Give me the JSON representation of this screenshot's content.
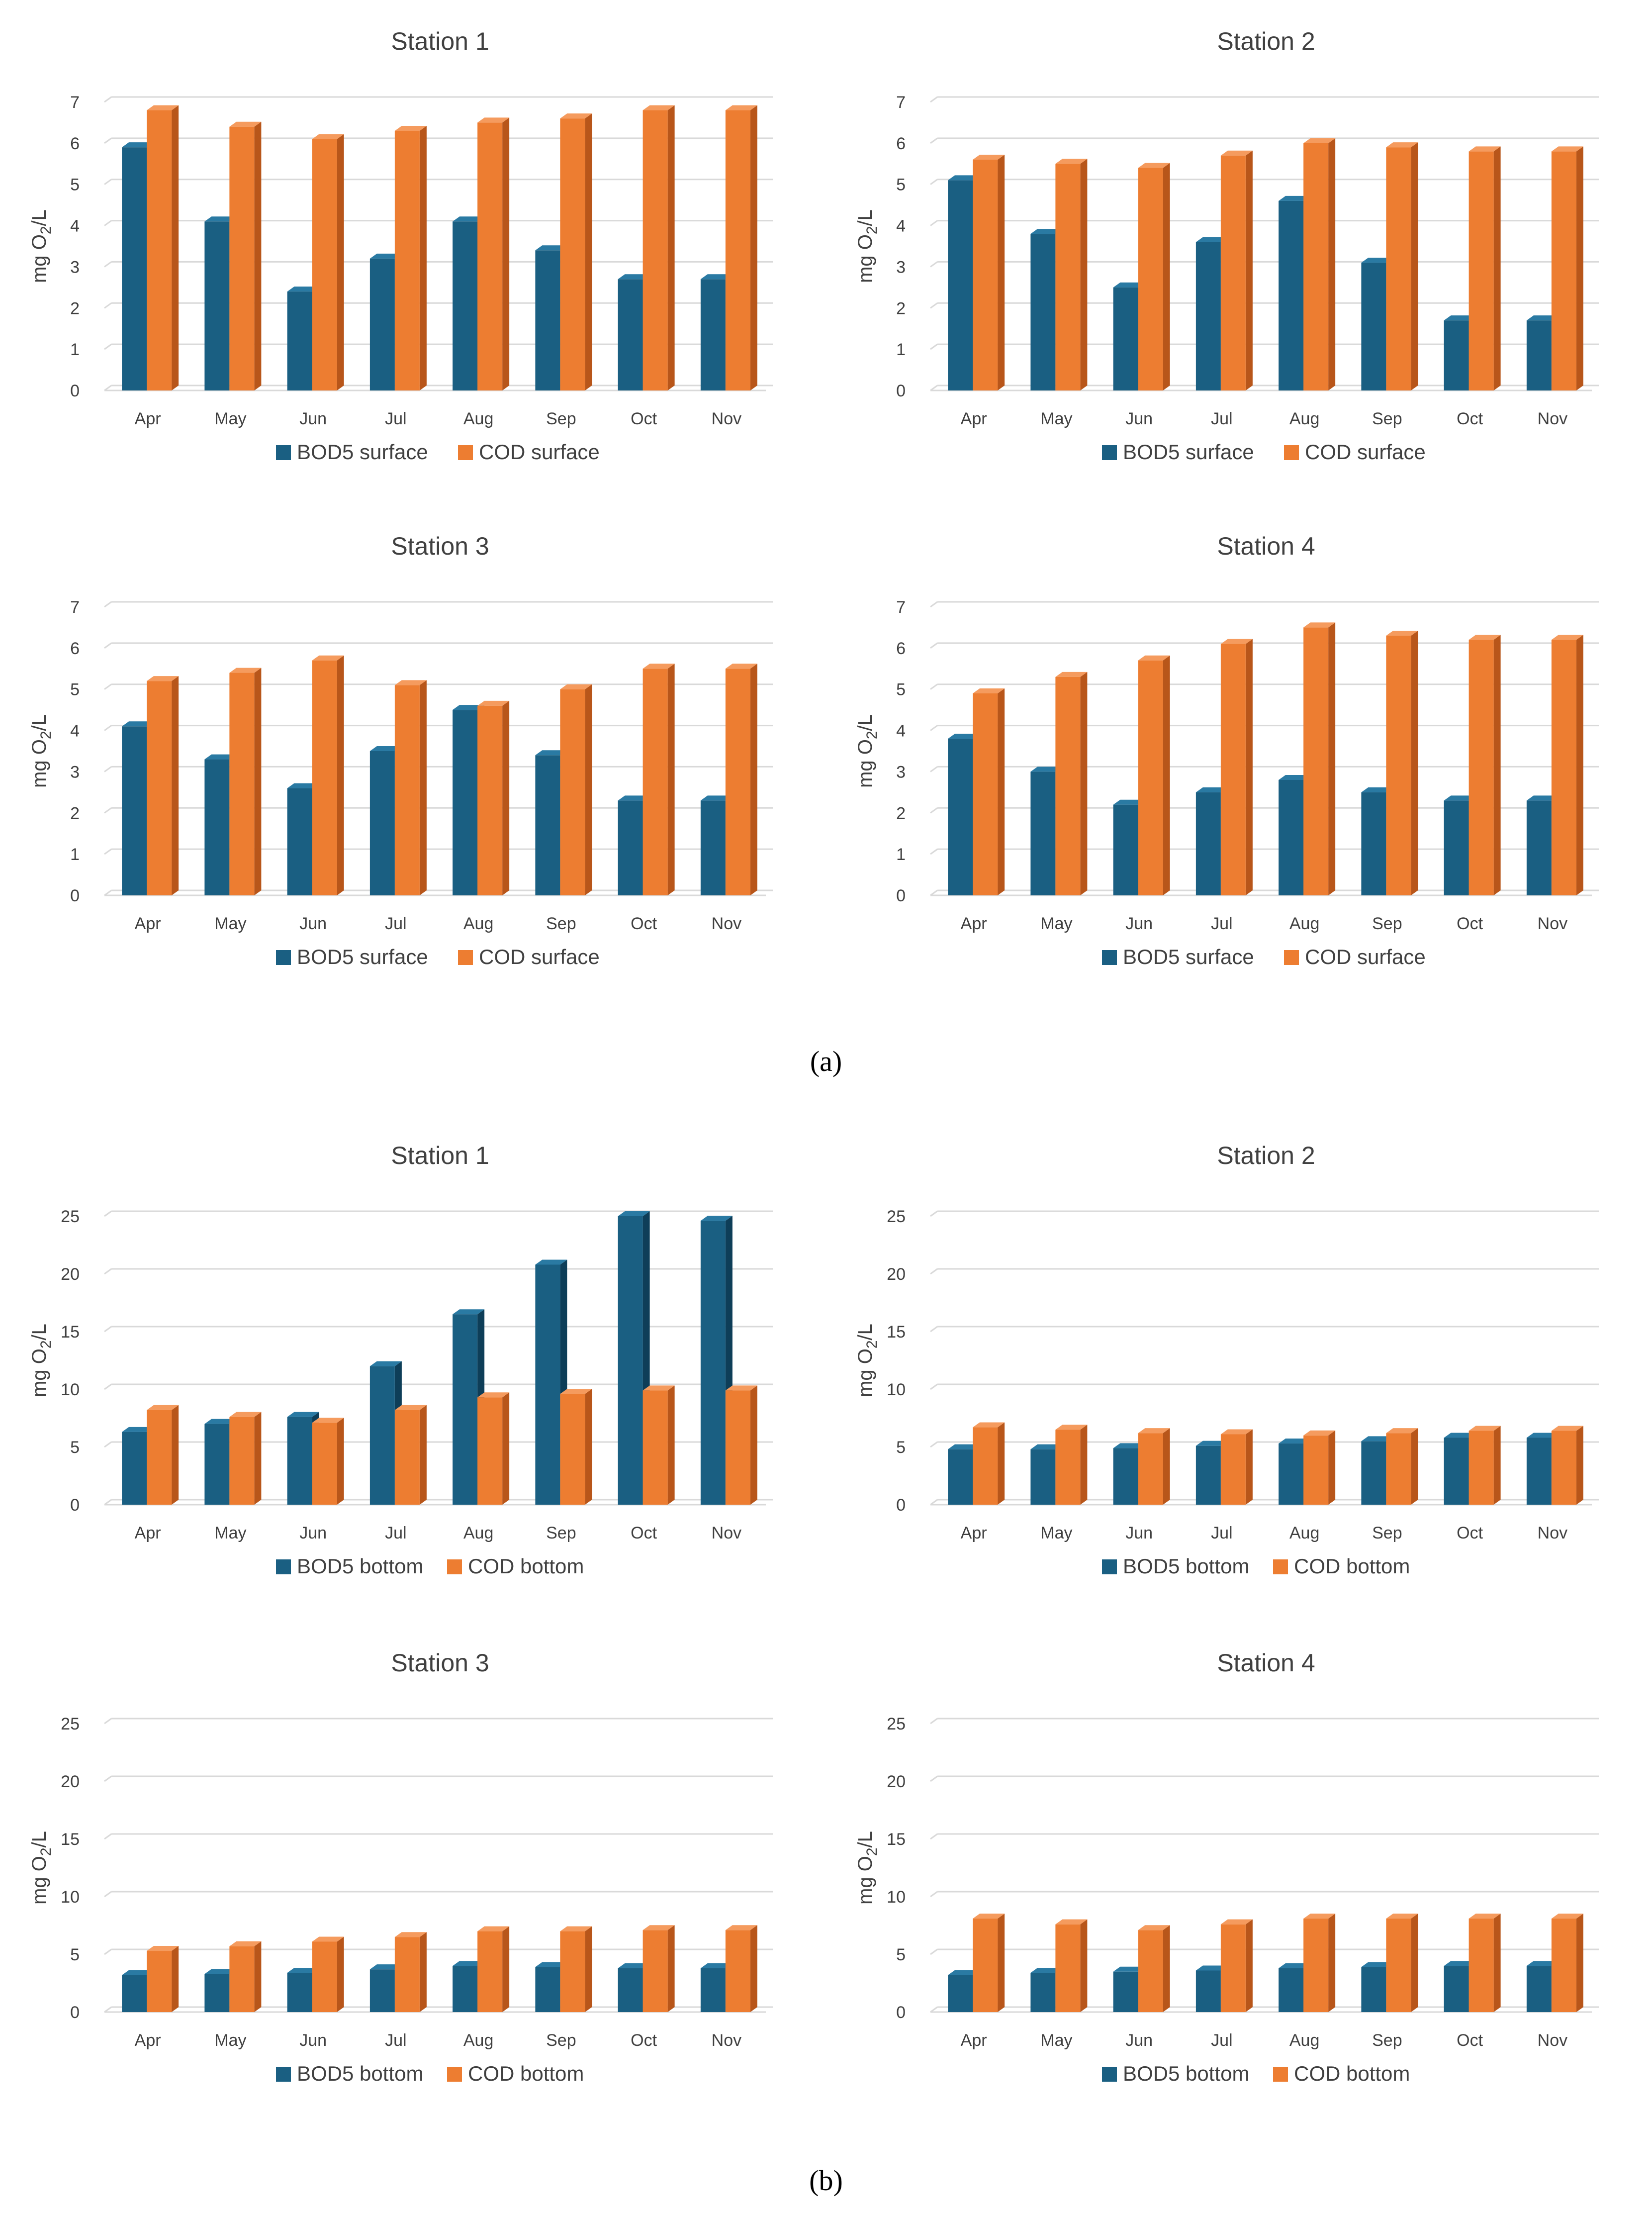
{
  "colors": {
    "bod5": "#1a5f82",
    "bod5_top": "#2a7aa3",
    "bod5_side": "#0e3e58",
    "cod": "#ed7d31",
    "cod_top": "#f59b5e",
    "cod_side": "#b8561a",
    "grid": "#d9d9d9",
    "text": "#404040"
  },
  "panels": [
    {
      "label": "(a)"
    },
    {
      "label": "(b)"
    }
  ],
  "chart_data": [
    {
      "type": "bar",
      "panel": "a",
      "title": "Station 1",
      "categories": [
        "Apr",
        "May",
        "Jun",
        "Jul",
        "Aug",
        "Sep",
        "Oct",
        "Nov"
      ],
      "ylabel": "mg O2/L",
      "ylabel_main": "mg O",
      "ylabel_sub": "2",
      "ylabel_tail": "/L",
      "ylim": [
        0,
        7
      ],
      "yticks": [
        0,
        1,
        2,
        3,
        4,
        5,
        6,
        7
      ],
      "grid": true,
      "legend": "bottom-center",
      "series": [
        {
          "name": "BOD5 surface",
          "values": [
            5.9,
            4.1,
            2.4,
            3.2,
            4.1,
            3.4,
            2.7,
            2.7
          ]
        },
        {
          "name": "COD surface",
          "values": [
            6.8,
            6.4,
            6.1,
            6.3,
            6.5,
            6.6,
            6.8,
            6.8
          ]
        }
      ]
    },
    {
      "type": "bar",
      "panel": "a",
      "title": "Station 2",
      "categories": [
        "Apr",
        "May",
        "Jun",
        "Jul",
        "Aug",
        "Sep",
        "Oct",
        "Nov"
      ],
      "ylabel": "mg O2/L",
      "ylabel_main": "mg O",
      "ylabel_sub": "2",
      "ylabel_tail": "/L",
      "ylim": [
        0,
        7
      ],
      "yticks": [
        0,
        1,
        2,
        3,
        4,
        5,
        6,
        7
      ],
      "grid": true,
      "legend": "bottom-center",
      "series": [
        {
          "name": "BOD5 surface",
          "values": [
            5.1,
            3.8,
            2.5,
            3.6,
            4.6,
            3.1,
            1.7,
            1.7
          ]
        },
        {
          "name": "COD surface",
          "values": [
            5.6,
            5.5,
            5.4,
            5.7,
            6.0,
            5.9,
            5.8,
            5.8
          ]
        }
      ]
    },
    {
      "type": "bar",
      "panel": "a",
      "title": "Station 3",
      "categories": [
        "Apr",
        "May",
        "Jun",
        "Jul",
        "Aug",
        "Sep",
        "Oct",
        "Nov"
      ],
      "ylabel": "mg O2/L",
      "ylabel_main": "mg O",
      "ylabel_sub": "2",
      "ylabel_tail": "/L",
      "ylim": [
        0,
        7
      ],
      "yticks": [
        0,
        1,
        2,
        3,
        4,
        5,
        6,
        7
      ],
      "grid": true,
      "legend": "bottom-center",
      "series": [
        {
          "name": "BOD5 surface",
          "values": [
            4.1,
            3.3,
            2.6,
            3.5,
            4.5,
            3.4,
            2.3,
            2.3
          ]
        },
        {
          "name": "COD surface",
          "values": [
            5.2,
            5.4,
            5.7,
            5.1,
            4.6,
            5.0,
            5.5,
            5.5
          ]
        }
      ]
    },
    {
      "type": "bar",
      "panel": "a",
      "title": "Station 4",
      "categories": [
        "Apr",
        "May",
        "Jun",
        "Jul",
        "Aug",
        "Sep",
        "Oct",
        "Nov"
      ],
      "ylabel": "mg O2/L",
      "ylabel_main": "mg O",
      "ylabel_sub": "2",
      "ylabel_tail": "/L",
      "ylim": [
        0,
        7
      ],
      "yticks": [
        0,
        1,
        2,
        3,
        4,
        5,
        6,
        7
      ],
      "grid": true,
      "legend": "bottom-center",
      "series": [
        {
          "name": "BOD5 surface",
          "values": [
            3.8,
            3.0,
            2.2,
            2.5,
            2.8,
            2.5,
            2.3,
            2.3
          ]
        },
        {
          "name": "COD surface",
          "values": [
            4.9,
            5.3,
            5.7,
            6.1,
            6.5,
            6.3,
            6.2,
            6.2
          ]
        }
      ]
    },
    {
      "type": "bar",
      "panel": "b",
      "title": "Station 1",
      "categories": [
        "Apr",
        "May",
        "Jun",
        "Jul",
        "Aug",
        "Sep",
        "Oct",
        "Nov"
      ],
      "ylabel": "mg O2/L",
      "ylabel_main": "mg O",
      "ylabel_sub": "2",
      "ylabel_tail": "/L",
      "ylim": [
        0,
        25
      ],
      "yticks": [
        0,
        5,
        10,
        15,
        20,
        25
      ],
      "grid": true,
      "legend": "bottom-center",
      "series": [
        {
          "name": "BOD5 bottom",
          "values": [
            6.3,
            7.0,
            7.6,
            12.0,
            16.5,
            20.8,
            25.0,
            24.6
          ]
        },
        {
          "name": "COD bottom",
          "values": [
            8.2,
            7.6,
            7.1,
            8.2,
            9.3,
            9.6,
            9.9,
            9.9
          ]
        }
      ]
    },
    {
      "type": "bar",
      "panel": "b",
      "title": "Station 2",
      "categories": [
        "Apr",
        "May",
        "Jun",
        "Jul",
        "Aug",
        "Sep",
        "Oct",
        "Nov"
      ],
      "ylabel": "mg O2/L",
      "ylabel_main": "mg O",
      "ylabel_sub": "2",
      "ylabel_tail": "/L",
      "ylim": [
        0,
        25
      ],
      "yticks": [
        0,
        5,
        10,
        15,
        20,
        25
      ],
      "grid": true,
      "legend": "bottom-center",
      "series": [
        {
          "name": "BOD5 bottom",
          "values": [
            4.8,
            4.8,
            4.9,
            5.1,
            5.3,
            5.5,
            5.8,
            5.8
          ]
        },
        {
          "name": "COD bottom",
          "values": [
            6.7,
            6.5,
            6.2,
            6.1,
            6.0,
            6.2,
            6.4,
            6.4
          ]
        }
      ]
    },
    {
      "type": "bar",
      "panel": "b",
      "title": "Station 3",
      "categories": [
        "Apr",
        "May",
        "Jun",
        "Jul",
        "Aug",
        "Sep",
        "Oct",
        "Nov"
      ],
      "ylabel": "mg O2/L",
      "ylabel_main": "mg O",
      "ylabel_sub": "2",
      "ylabel_tail": "/L",
      "ylim": [
        0,
        25
      ],
      "yticks": [
        0,
        5,
        10,
        15,
        20,
        25
      ],
      "grid": true,
      "legend": "bottom-center",
      "series": [
        {
          "name": "BOD5 bottom",
          "values": [
            3.2,
            3.3,
            3.4,
            3.7,
            4.0,
            3.9,
            3.8,
            3.8
          ]
        },
        {
          "name": "COD bottom",
          "values": [
            5.3,
            5.7,
            6.1,
            6.5,
            7.0,
            7.0,
            7.1,
            7.1
          ]
        }
      ]
    },
    {
      "type": "bar",
      "panel": "b",
      "title": "Station 4",
      "categories": [
        "Apr",
        "May",
        "Jun",
        "Jul",
        "Aug",
        "Sep",
        "Oct",
        "Nov"
      ],
      "ylabel": "mg O2/L",
      "ylabel_main": "mg O",
      "ylabel_sub": "2",
      "ylabel_tail": "/L",
      "ylim": [
        0,
        25
      ],
      "yticks": [
        0,
        5,
        10,
        15,
        20,
        25
      ],
      "grid": true,
      "legend": "bottom-center",
      "series": [
        {
          "name": "BOD5 bottom",
          "values": [
            3.2,
            3.4,
            3.5,
            3.6,
            3.8,
            3.9,
            4.0,
            4.0
          ]
        },
        {
          "name": "COD bottom",
          "values": [
            8.1,
            7.6,
            7.1,
            7.6,
            8.1,
            8.1,
            8.1,
            8.1
          ]
        }
      ]
    }
  ]
}
